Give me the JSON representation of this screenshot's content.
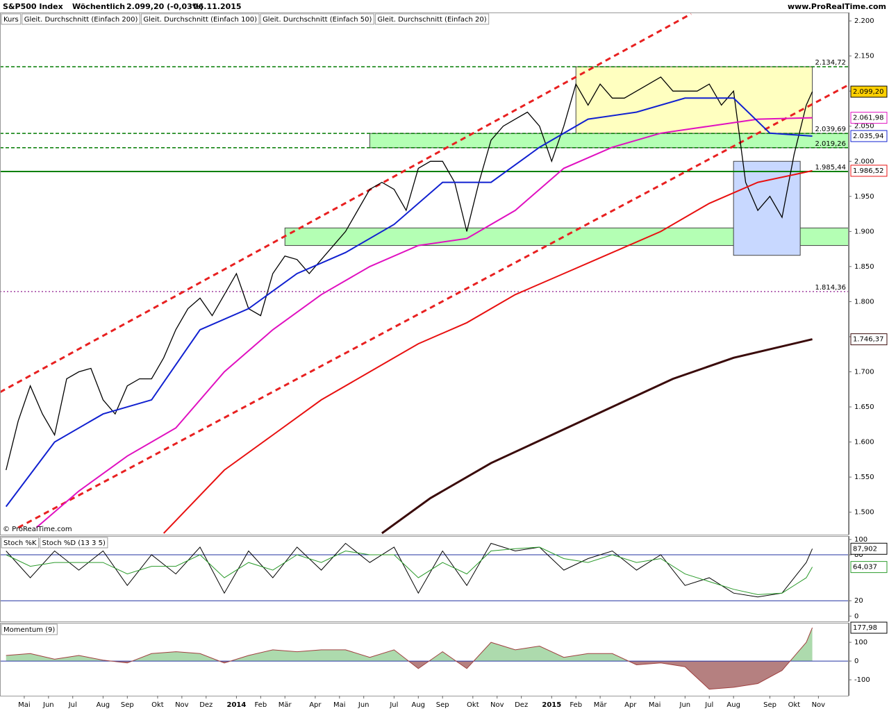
{
  "chart_data": [
    {
      "type": "line",
      "title": "S&P500 Index",
      "subtitle": "Wöchentlich",
      "quote": "2.099,20 (-0,03%)",
      "date": "06.11.2015",
      "source": "www.ProRealTime.com",
      "copyright": "© ProRealTime.com",
      "xlim": [
        -1,
        139
      ],
      "ylim": [
        1468,
        2212
      ],
      "yticks": [
        {
          "value": 1500,
          "label": "1.500"
        },
        {
          "value": 1550,
          "label": "1.550"
        },
        {
          "value": 1600,
          "label": "1.600"
        },
        {
          "value": 1650,
          "label": "1.650"
        },
        {
          "value": 1700,
          "label": "1.700"
        },
        {
          "value": 1750,
          "label": "1.750"
        },
        {
          "value": 1800,
          "label": "1.800"
        },
        {
          "value": 1850,
          "label": "1.850"
        },
        {
          "value": 1900,
          "label": "1.900"
        },
        {
          "value": 1950,
          "label": "1.950"
        },
        {
          "value": 2000,
          "label": "2.000"
        },
        {
          "value": 2050,
          "label": "2.050"
        },
        {
          "value": 2100,
          "label": "2.100"
        },
        {
          "value": 2150,
          "label": "2.150"
        },
        {
          "value": 2200,
          "label": "2.200"
        }
      ],
      "series": [
        {
          "name": "Kurs",
          "color": "#000000",
          "x": [
            0,
            2,
            4,
            6,
            8,
            10,
            12,
            14,
            16,
            18,
            20,
            22,
            24,
            26,
            28,
            30,
            32,
            34,
            36,
            38,
            40,
            42,
            44,
            46,
            48,
            50,
            52,
            54,
            56,
            58,
            60,
            62,
            64,
            66,
            68,
            70,
            72,
            74,
            76,
            78,
            80,
            82,
            84,
            86,
            88,
            90,
            92,
            94,
            96,
            98,
            100,
            102,
            104,
            106,
            108,
            110,
            112,
            114,
            116,
            118,
            120,
            122,
            124,
            126,
            128,
            130,
            132,
            133
          ],
          "values": [
            1560,
            1630,
            1680,
            1640,
            1610,
            1690,
            1700,
            1705,
            1660,
            1640,
            1680,
            1690,
            1690,
            1720,
            1760,
            1790,
            1805,
            1780,
            1810,
            1840,
            1790,
            1780,
            1840,
            1865,
            1860,
            1840,
            1860,
            1880,
            1900,
            1930,
            1960,
            1970,
            1960,
            1930,
            1990,
            2000,
            2000,
            1970,
            1900,
            1970,
            2030,
            2050,
            2060,
            2070,
            2050,
            2000,
            2050,
            2110,
            2080,
            2110,
            2090,
            2090,
            2100,
            2110,
            2120,
            2100,
            2100,
            2100,
            2110,
            2080,
            2100,
            1970,
            1930,
            1950,
            1920,
            2010,
            2080,
            2099.2
          ]
        },
        {
          "name": "Gleit. Durchschnitt (Einfach 200)",
          "color": "#3a0a0a",
          "x": [
            62,
            70,
            80,
            90,
            100,
            110,
            120,
            133
          ],
          "values": [
            1470,
            1520,
            1570,
            1610,
            1650,
            1690,
            1720,
            1746.37
          ]
        },
        {
          "name": "Gleit. Durchschnitt (Einfach 100)",
          "color": "#e81010",
          "x": [
            26,
            36,
            44,
            52,
            60,
            68,
            76,
            84,
            92,
            100,
            108,
            116,
            124,
            133
          ],
          "values": [
            1470,
            1560,
            1610,
            1660,
            1700,
            1740,
            1770,
            1810,
            1840,
            1870,
            1900,
            1940,
            1970,
            1986.52
          ]
        },
        {
          "name": "Gleit. Durchschnitt (Einfach 50)",
          "color": "#e010c0",
          "x": [
            5,
            12,
            20,
            28,
            36,
            44,
            52,
            60,
            68,
            76,
            84,
            92,
            100,
            108,
            116,
            124,
            133
          ],
          "values": [
            1478,
            1530,
            1580,
            1620,
            1700,
            1760,
            1810,
            1850,
            1880,
            1890,
            1930,
            1990,
            2020,
            2040,
            2050,
            2060,
            2061.98
          ]
        },
        {
          "name": "Gleit. Durchschnitt (Einfach 20)",
          "color": "#1020d0",
          "x": [
            0,
            8,
            16,
            24,
            32,
            40,
            48,
            56,
            64,
            72,
            80,
            88,
            96,
            104,
            112,
            120,
            126,
            133
          ],
          "values": [
            1508,
            1600,
            1640,
            1660,
            1760,
            1790,
            1840,
            1870,
            1910,
            1970,
            1970,
            2020,
            2060,
            2070,
            2090,
            2090,
            2040,
            2035.94
          ]
        }
      ],
      "levels": [
        {
          "value": 2134.72,
          "label": "2.134,72",
          "color": "#007a00"
        },
        {
          "value": 2039.69,
          "label": "2.039,69",
          "color": "#007a00"
        },
        {
          "value": 2019.26,
          "label": "2.019,26",
          "color": "#007a00"
        },
        {
          "value": 1985.44,
          "label": "1.985,44",
          "color": "#008000"
        },
        {
          "value": 1814.36,
          "label": "1.814,36",
          "color": "#a040a0"
        }
      ],
      "zones": [
        {
          "x": [
            94,
            133
          ],
          "y": [
            2039.69,
            2134.72
          ],
          "color": "#ffffc0"
        },
        {
          "x": [
            60,
            139
          ],
          "y": [
            2019.26,
            2039.69
          ],
          "color": "#b4ffb4"
        },
        {
          "x": [
            46,
            139
          ],
          "y": [
            1880,
            1905
          ],
          "color": "#b4ffb4"
        },
        {
          "x": [
            120,
            131
          ],
          "y": [
            1866,
            2000
          ],
          "color": "#c8d8ff"
        }
      ],
      "trendlines": [
        {
          "x": [
            -1,
            113
          ],
          "y": [
            1671,
            2210
          ],
          "color": "#e82020"
        },
        {
          "x": [
            2,
            139
          ],
          "y": [
            1478,
            2109
          ],
          "color": "#e82020"
        }
      ],
      "last_labels": [
        {
          "value": 2099.2,
          "label": "2.099,20",
          "color": "#000000"
        },
        {
          "value": 2061.98,
          "label": "2.061,98",
          "color": "#e010c0"
        },
        {
          "value": 2035.94,
          "label": "2.035,94",
          "color": "#1020d0"
        },
        {
          "value": 1986.52,
          "label": "1.986,52",
          "color": "#e81010"
        },
        {
          "value": 1746.37,
          "label": "1.746,37",
          "color": "#3a0a0a"
        }
      ]
    },
    {
      "type": "line",
      "xlim": [
        -1,
        139
      ],
      "ylim": [
        -7,
        104.5
      ],
      "yticks": [
        0,
        20,
        80,
        100
      ],
      "hlines": [
        20,
        80
      ],
      "series": [
        {
          "name": "Stoch %K",
          "color": "#000000",
          "x": [
            0,
            4,
            8,
            12,
            16,
            20,
            24,
            28,
            32,
            36,
            40,
            44,
            48,
            52,
            56,
            60,
            64,
            68,
            72,
            76,
            80,
            84,
            88,
            92,
            96,
            100,
            104,
            108,
            112,
            116,
            120,
            124,
            128,
            132,
            133
          ],
          "values": [
            85,
            50,
            85,
            60,
            85,
            40,
            80,
            55,
            90,
            30,
            85,
            50,
            90,
            60,
            95,
            70,
            90,
            30,
            85,
            40,
            95,
            85,
            90,
            60,
            75,
            85,
            60,
            80,
            40,
            50,
            30,
            25,
            30,
            70,
            87.902
          ]
        },
        {
          "name": "Stoch %D (13 3 5)",
          "color": "#2a9a2a",
          "x": [
            0,
            4,
            8,
            12,
            16,
            20,
            24,
            28,
            32,
            36,
            40,
            44,
            48,
            52,
            56,
            60,
            64,
            68,
            72,
            76,
            80,
            84,
            88,
            92,
            96,
            100,
            104,
            108,
            112,
            116,
            120,
            124,
            128,
            132,
            133
          ],
          "values": [
            80,
            65,
            70,
            70,
            70,
            55,
            65,
            65,
            80,
            50,
            70,
            60,
            80,
            70,
            85,
            80,
            80,
            50,
            70,
            55,
            85,
            88,
            90,
            75,
            70,
            80,
            70,
            75,
            55,
            45,
            35,
            28,
            30,
            50,
            64.037
          ]
        }
      ],
      "last_labels": [
        {
          "value": 87.902,
          "label": "87,902",
          "color": "#000000"
        },
        {
          "value": 64.037,
          "label": "64,037",
          "color": "#2a9a2a"
        }
      ]
    },
    {
      "type": "area",
      "xlim": [
        -1,
        139
      ],
      "ylim": [
        -185,
        204
      ],
      "yticks": [
        -100,
        0,
        100
      ],
      "xticks": [
        {
          "value": 3,
          "label": "Mai"
        },
        {
          "value": 7,
          "label": "Jun"
        },
        {
          "value": 11,
          "label": "Jul"
        },
        {
          "value": 16,
          "label": "Aug"
        },
        {
          "value": 20,
          "label": "Sep"
        },
        {
          "value": 25,
          "label": "Okt"
        },
        {
          "value": 29,
          "label": "Nov"
        },
        {
          "value": 33,
          "label": "Dez"
        },
        {
          "value": 38,
          "label": "2014"
        },
        {
          "value": 42,
          "label": "Feb"
        },
        {
          "value": 46,
          "label": "Mär"
        },
        {
          "value": 51,
          "label": "Apr"
        },
        {
          "value": 55,
          "label": "Mai"
        },
        {
          "value": 59,
          "label": "Jun"
        },
        {
          "value": 64,
          "label": "Jul"
        },
        {
          "value": 68,
          "label": "Aug"
        },
        {
          "value": 72,
          "label": "Sep"
        },
        {
          "value": 77,
          "label": "Okt"
        },
        {
          "value": 81,
          "label": "Nov"
        },
        {
          "value": 85,
          "label": "Dez"
        },
        {
          "value": 90,
          "label": "2015"
        },
        {
          "value": 94,
          "label": "Feb"
        },
        {
          "value": 98,
          "label": "Mär"
        },
        {
          "value": 103,
          "label": "Apr"
        },
        {
          "value": 107,
          "label": "Mai"
        },
        {
          "value": 112,
          "label": "Jun"
        },
        {
          "value": 116,
          "label": "Jul"
        },
        {
          "value": 120,
          "label": "Aug"
        },
        {
          "value": 126,
          "label": "Sep"
        },
        {
          "value": 130,
          "label": "Okt"
        },
        {
          "value": 134,
          "label": "Nov"
        }
      ],
      "series": [
        {
          "name": "Momentum (9)",
          "color": "#a04040",
          "x": [
            0,
            4,
            8,
            12,
            16,
            20,
            24,
            28,
            32,
            36,
            40,
            44,
            48,
            52,
            56,
            60,
            64,
            68,
            72,
            76,
            80,
            84,
            88,
            92,
            96,
            100,
            104,
            108,
            112,
            116,
            120,
            124,
            128,
            132,
            133
          ],
          "values": [
            30,
            40,
            10,
            30,
            5,
            -10,
            40,
            50,
            40,
            -10,
            30,
            60,
            50,
            60,
            60,
            20,
            60,
            -40,
            50,
            -40,
            100,
            60,
            80,
            20,
            40,
            40,
            -20,
            -10,
            -30,
            -150,
            -140,
            -120,
            -50,
            100,
            177.98
          ]
        }
      ],
      "last_labels": [
        {
          "value": 177.98,
          "label": "177,98",
          "color": "#000000"
        }
      ]
    }
  ]
}
